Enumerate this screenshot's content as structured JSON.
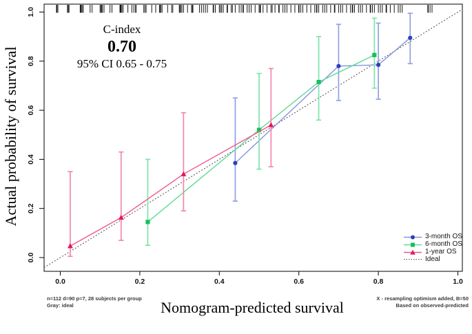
{
  "figure": {
    "annotation": {
      "title": "C-index",
      "value": "0.70",
      "ci": "95% CI 0.65 - 0.75"
    },
    "xlabel": "Nomogram-predicted survival",
    "ylabel": "Actual probability of survival",
    "footnote_left_line1": "n=112 d=90 p=7, 28 subjects per group",
    "footnote_left_line2": "Gray: ideal",
    "footnote_right_line1": "X - resampling optimism added, B=50",
    "footnote_right_line2": "Based on observed-predicted"
  },
  "chart_data": {
    "type": "line",
    "title": "Nomogram calibration curve with C-index 0.70 (95% CI 0.65 - 0.75)",
    "xlabel": "Nomogram-predicted survival",
    "ylabel": "Actual probability of survival",
    "xlim": [
      0,
      1
    ],
    "ylim": [
      0,
      1
    ],
    "x_ticks": [
      "0.0",
      "0.2",
      "0.4",
      "0.6",
      "0.8",
      "1.0"
    ],
    "y_ticks": [
      "0.0",
      "0.2",
      "0.4",
      "0.6",
      "0.8",
      "1.0"
    ],
    "grid": false,
    "legend_position": "bottom-right",
    "rug_color": "#141414",
    "series": [
      {
        "name": "3-month OS",
        "marker": "circle",
        "marker_color": "#2b3fbe",
        "line_color": "#8794dc",
        "bar_color": "#93a0e2",
        "points": [
          {
            "x": 0.44,
            "y": 0.385,
            "lo": 0.23,
            "hi": 0.65
          },
          {
            "x": 0.7,
            "y": 0.78,
            "lo": 0.64,
            "hi": 0.95
          },
          {
            "x": 0.8,
            "y": 0.785,
            "lo": 0.645,
            "hi": 0.955
          },
          {
            "x": 0.88,
            "y": 0.895,
            "lo": 0.79,
            "hi": 0.995
          }
        ]
      },
      {
        "name": "6-month OS",
        "marker": "square",
        "marker_color": "#14c15a",
        "line_color": "#5cd993",
        "bar_color": "#7ce4ab",
        "points": [
          {
            "x": 0.22,
            "y": 0.145,
            "lo": 0.05,
            "hi": 0.4
          },
          {
            "x": 0.5,
            "y": 0.52,
            "lo": 0.36,
            "hi": 0.75
          },
          {
            "x": 0.65,
            "y": 0.715,
            "lo": 0.56,
            "hi": 0.9
          },
          {
            "x": 0.79,
            "y": 0.825,
            "lo": 0.69,
            "hi": 0.975
          }
        ]
      },
      {
        "name": "1-year OS",
        "marker": "triangle",
        "marker_color": "#e4175e",
        "line_color": "#f0568e",
        "bar_color": "#f287ac",
        "points": [
          {
            "x": 0.025,
            "y": 0.047,
            "lo": 0.005,
            "hi": 0.35
          },
          {
            "x": 0.153,
            "y": 0.163,
            "lo": 0.07,
            "hi": 0.43
          },
          {
            "x": 0.31,
            "y": 0.34,
            "lo": 0.19,
            "hi": 0.59
          },
          {
            "x": 0.53,
            "y": 0.54,
            "lo": 0.37,
            "hi": 0.77
          }
        ]
      }
    ],
    "ideal": {
      "label": "Ideal",
      "color": "#4a4a4a",
      "style": "dotted"
    },
    "rug_x": [
      -0.009,
      -0.006,
      0.018,
      0.02,
      0.022,
      0.05,
      0.052,
      0.055,
      0.058,
      0.075,
      0.08,
      0.1,
      0.103,
      0.106,
      0.11,
      0.125,
      0.13,
      0.15,
      0.152,
      0.155,
      0.158,
      0.17,
      0.18,
      0.185,
      0.19,
      0.21,
      0.213,
      0.216,
      0.23,
      0.24,
      0.25,
      0.253,
      0.256,
      0.27,
      0.28,
      0.283,
      0.3,
      0.303,
      0.306,
      0.31,
      0.32,
      0.33,
      0.333,
      0.35,
      0.355,
      0.36,
      0.365,
      0.37,
      0.385,
      0.39,
      0.4,
      0.403,
      0.406,
      0.41,
      0.42,
      0.43,
      0.433,
      0.44,
      0.45,
      0.455,
      0.46,
      0.47,
      0.475,
      0.48,
      0.49,
      0.5,
      0.503,
      0.51,
      0.52,
      0.53,
      0.533,
      0.54,
      0.55,
      0.56,
      0.565,
      0.57,
      0.58,
      0.59,
      0.6,
      0.605,
      0.61,
      0.62,
      0.63,
      0.64,
      0.645,
      0.65,
      0.66,
      0.665,
      0.67,
      0.68,
      0.69,
      0.7,
      0.705,
      0.71,
      0.72,
      0.73,
      0.735,
      0.74,
      0.75,
      0.755,
      0.76,
      0.77,
      0.78,
      0.785,
      0.79,
      0.8,
      0.805,
      0.81,
      0.82,
      0.83,
      0.84,
      0.85,
      0.855,
      0.86,
      0.925,
      0.93,
      0.935
    ]
  }
}
